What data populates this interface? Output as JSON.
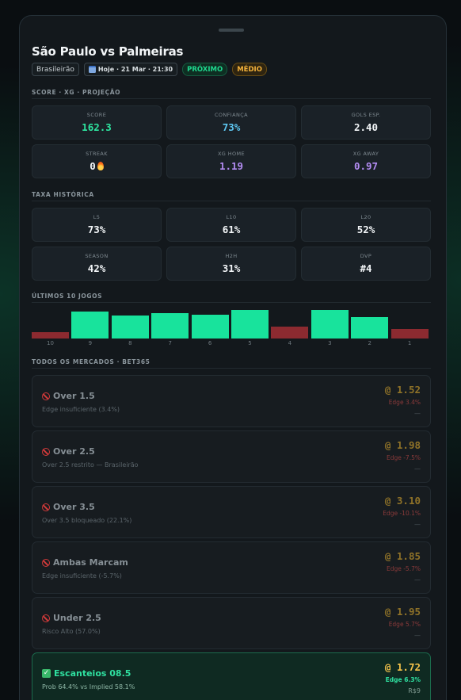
{
  "match": {
    "title": "São Paulo vs Palmeiras",
    "league": "Brasileirão",
    "date": "Hoje · 21 Mar · 21:30",
    "status_badge": "PRÓXIMO",
    "risk_badge": "MÉDIO"
  },
  "score_section": {
    "label": "SCORE · XG · PROJEÇÃO",
    "cards": [
      {
        "label": "SCORE",
        "value": "162.3"
      },
      {
        "label": "CONFIANÇA",
        "value": "73%"
      },
      {
        "label": "GOLS ESP.",
        "value": "2.40"
      },
      {
        "label": "STREAK",
        "value": "0"
      },
      {
        "label": "XG HOME",
        "value": "1.19"
      },
      {
        "label": "XG AWAY",
        "value": "0.97"
      }
    ]
  },
  "rate_section": {
    "label": "TAXA HISTÓRICA",
    "cards": [
      {
        "label": "L5",
        "value": "73%"
      },
      {
        "label": "L10",
        "value": "61%"
      },
      {
        "label": "L20",
        "value": "52%"
      },
      {
        "label": "SEASON",
        "value": "42%"
      },
      {
        "label": "H2H",
        "value": "31%"
      },
      {
        "label": "DVP",
        "value": "#4"
      }
    ]
  },
  "last_games": {
    "label": "ÚLTIMOS 10 JOGOS",
    "games": [
      {
        "label": "10",
        "result": "miss",
        "level": 0.22
      },
      {
        "label": "9",
        "result": "hit",
        "level": 0.9
      },
      {
        "label": "8",
        "result": "hit",
        "level": 0.75
      },
      {
        "label": "7",
        "result": "hit",
        "level": 0.85
      },
      {
        "label": "6",
        "result": "hit",
        "level": 0.8
      },
      {
        "label": "5",
        "result": "hit",
        "level": 0.95
      },
      {
        "label": "4",
        "result": "miss",
        "level": 0.4
      },
      {
        "label": "3",
        "result": "hit",
        "level": 0.95
      },
      {
        "label": "2",
        "result": "hit",
        "level": 0.7
      },
      {
        "label": "1",
        "result": "miss",
        "level": 0.32
      }
    ]
  },
  "markets": {
    "label": "TODOS OS MERCADOS · BET365",
    "items": [
      {
        "name": "Over 1.5",
        "note": "Edge insuficiente (3.4%)",
        "odd": "@ 1.52",
        "edge": "Edge 3.4%",
        "stake": "—",
        "blocked": true
      },
      {
        "name": "Over 2.5",
        "note": "Over 2.5 restrito — Brasileirão",
        "odd": "@ 1.98",
        "edge": "Edge -7.5%",
        "stake": "—",
        "blocked": true
      },
      {
        "name": "Over 3.5",
        "note": "Over 3.5 bloqueado (22.1%)",
        "odd": "@ 3.10",
        "edge": "Edge -10.1%",
        "stake": "—",
        "blocked": true
      },
      {
        "name": "Ambas Marcam",
        "note": "Edge insuficiente (-5.7%)",
        "odd": "@ 1.85",
        "edge": "Edge -5.7%",
        "stake": "—",
        "blocked": true
      },
      {
        "name": "Under 2.5",
        "note": "Risco Alto (57.0%)",
        "odd": "@ 1.95",
        "edge": "Edge 5.7%",
        "stake": "—",
        "blocked": true
      },
      {
        "name": "Escanteios 08.5",
        "note": "Prob 64.4% vs Implied 58.1%",
        "odd": "@ 1.72",
        "edge": "Edge 6.3%",
        "stake": "R$9",
        "blocked": false
      }
    ]
  },
  "colors": {
    "accent_green": "#18e39c",
    "miss_red": "#8c2a30",
    "odd_gold": "#f3c14a"
  }
}
